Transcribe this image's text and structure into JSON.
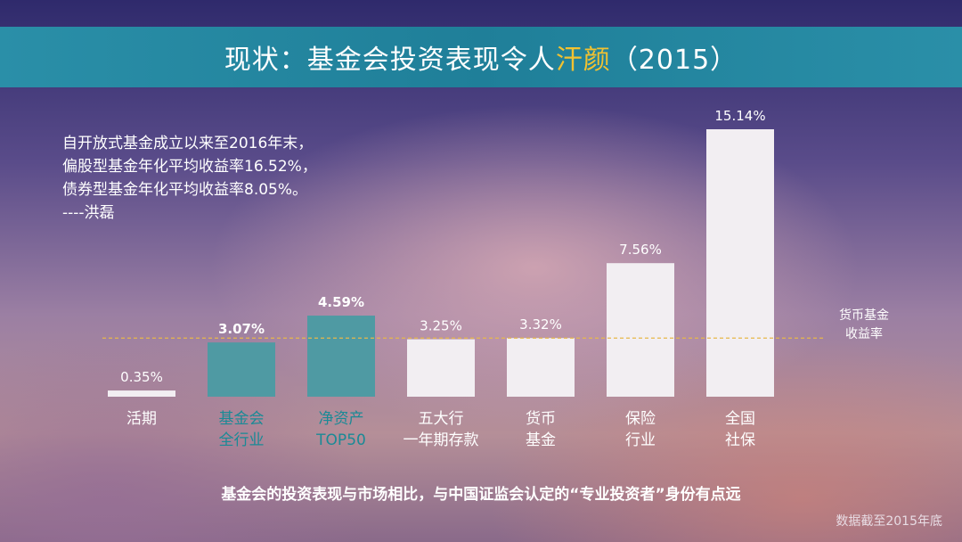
{
  "title": {
    "prefix": "现状：基金会投资表现令人",
    "highlight": "汗颜",
    "suffix": "（2015）"
  },
  "quote": {
    "line1": "自开放式基金成立以来至2016年末，",
    "line2": "偏股型基金年化平均收益率16.52%，",
    "line3": "债券型基金年化平均收益率8.05%。",
    "line4": "----洪磊"
  },
  "chart_data": {
    "type": "bar",
    "categories": [
      [
        "活期"
      ],
      [
        "基金会",
        "全行业"
      ],
      [
        "净资产",
        "TOP50"
      ],
      [
        "五大行",
        "一年期存款"
      ],
      [
        "货币",
        "基金"
      ],
      [
        "保险",
        "行业"
      ],
      [
        "全国",
        "社保"
      ]
    ],
    "values": [
      0.35,
      3.07,
      4.59,
      3.25,
      3.32,
      7.56,
      15.14
    ],
    "value_labels": [
      "0.35%",
      "3.07%",
      "4.59%",
      "3.25%",
      "3.32%",
      "7.56%",
      "15.14%"
    ],
    "highlighted": [
      false,
      true,
      true,
      false,
      false,
      false,
      false
    ],
    "reference_line": {
      "value": 3.32,
      "label_line1": "货币基金",
      "label_line2": "收益率"
    },
    "ylim": [
      0,
      15.14
    ],
    "colors": {
      "default_bar": "#f2eef2",
      "highlight_bar": "#4f9aa3",
      "highlight_label_color": "#1a8a96",
      "default_label_color": "#ffffff",
      "reference_line": "#e7b84a"
    }
  },
  "footer_note": "基金会的投资表现与市场相比，与中国证监会认定的“专业投资者”身份有点远",
  "source_note": "数据截至2015年底"
}
